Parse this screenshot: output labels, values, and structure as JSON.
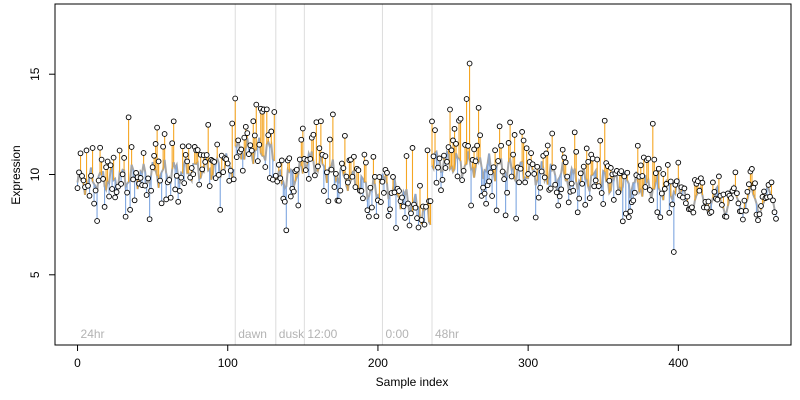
{
  "chart_data": {
    "type": "line",
    "xlabel": "Sample index",
    "ylabel": "Expression",
    "xlim": [
      -15,
      475
    ],
    "ylim": [
      1.5,
      18.5
    ],
    "x_ticks": [
      0,
      100,
      200,
      300,
      400
    ],
    "x_tick_labels": [
      "0",
      "100",
      "200",
      "300",
      "400"
    ],
    "y_ticks": [
      5,
      10,
      15
    ],
    "y_tick_labels": [
      "5",
      "10",
      "15"
    ],
    "period_markers": [
      {
        "label": "24hr",
        "x": 0,
        "line": false
      },
      {
        "label": "dawn",
        "x": 105,
        "line": true
      },
      {
        "label": "dusk",
        "x": 132,
        "line": true
      },
      {
        "label": "12:00",
        "x": 151,
        "line": true
      },
      {
        "label": "0:00",
        "x": 203,
        "line": true
      },
      {
        "label": "48hr",
        "x": 236,
        "line": true
      }
    ],
    "fitted_segments": [
      {
        "start": 0,
        "end": 104,
        "a": 9.6,
        "b": 0.008
      },
      {
        "start": 105,
        "end": 131,
        "a": 11.2,
        "b": 0.0
      },
      {
        "start": 132,
        "end": 150,
        "a": 9.6,
        "b": 0.03
      },
      {
        "start": 151,
        "end": 202,
        "a": 10.8,
        "b": -0.035
      },
      {
        "start": 203,
        "end": 235,
        "a": 9.6,
        "b": -0.055
      },
      {
        "start": 236,
        "end": 465,
        "a": 10.7,
        "b": -0.009
      }
    ],
    "series": [
      {
        "name": "",
        "kind": "fitted-line",
        "color": "#a6a6a6"
      },
      {
        "name": "",
        "kind": "residual-above",
        "color": "#f5a623"
      },
      {
        "name": "",
        "kind": "residual-below",
        "color": "#7ea6e0"
      },
      {
        "name": "",
        "kind": "observed-points",
        "color": "#000000"
      }
    ],
    "grid": false,
    "legend": "none"
  },
  "colors": {
    "fit": "#a6a6a6",
    "above": "#f5a623",
    "below": "#7ea6e0",
    "points": "#000000",
    "divider": "#dcdcdc",
    "period_text": "#b3b3b3"
  }
}
